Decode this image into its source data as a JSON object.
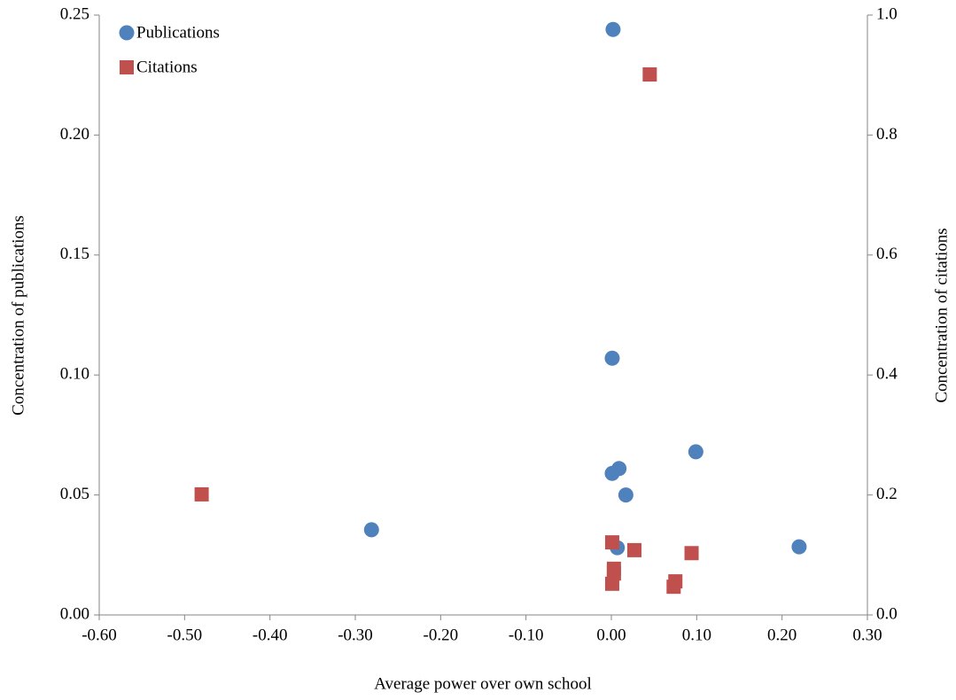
{
  "chart_data": {
    "type": "scatter",
    "x_label": "Average power over own school",
    "y_label": "Concentration of publications",
    "y2_label": "Concentration of citations",
    "xlim": [
      -0.6,
      0.3
    ],
    "xticks": [
      {
        "value": -0.6,
        "label": "-0.60"
      },
      {
        "value": -0.5,
        "label": "-0.50"
      },
      {
        "value": -0.4,
        "label": "-0.40"
      },
      {
        "value": -0.3,
        "label": "-0.30"
      },
      {
        "value": -0.2,
        "label": "-0.20"
      },
      {
        "value": -0.1,
        "label": "-0.10"
      },
      {
        "value": 0,
        "label": "0.00"
      },
      {
        "value": 0.1,
        "label": "0.10"
      },
      {
        "value": 0.2,
        "label": "0.20"
      },
      {
        "value": 0.3,
        "label": "0.30"
      }
    ],
    "ylim": [
      0,
      0.25
    ],
    "yticks": [
      {
        "value": 0,
        "label": "0.00"
      },
      {
        "value": 0.05,
        "label": "0.05"
      },
      {
        "value": 0.1,
        "label": "0.10"
      },
      {
        "value": 0.15,
        "label": "0.15"
      },
      {
        "value": 0.2,
        "label": "0.20"
      },
      {
        "value": 0.25,
        "label": "0.25"
      }
    ],
    "y2lim": [
      0,
      1
    ],
    "y2ticks": [
      {
        "value": 0,
        "label": "0.0"
      },
      {
        "value": 0.2,
        "label": "0.2"
      },
      {
        "value": 0.4,
        "label": "0.4"
      },
      {
        "value": 0.6,
        "label": "0.6"
      },
      {
        "value": 0.8,
        "label": "0.8"
      },
      {
        "value": 1,
        "label": "1.0"
      }
    ],
    "legend": "upper left",
    "series": [
      {
        "name": "Publications",
        "color": "#4f81bd",
        "marker": "circle",
        "x": [
          0.002,
          0.001,
          0.099,
          0.009,
          0.001,
          0.017,
          -0.281,
          0.22,
          0.007
        ],
        "values": [
          0.244,
          0.107,
          0.068,
          0.061,
          0.059,
          0.05,
          0.0355,
          0.0284,
          0.028
        ]
      },
      {
        "name": "Citations",
        "color": "#c0504d",
        "marker": "square",
        "axis": "y2",
        "x": [
          0.045,
          -0.48,
          0.001,
          0.027,
          0.094,
          0.003,
          0.003,
          0.075,
          0.073,
          0.001
        ],
        "values": [
          0.901,
          0.201,
          0.121,
          0.108,
          0.103,
          0.077,
          0.069,
          0.056,
          0.047,
          0.052
        ]
      }
    ]
  }
}
